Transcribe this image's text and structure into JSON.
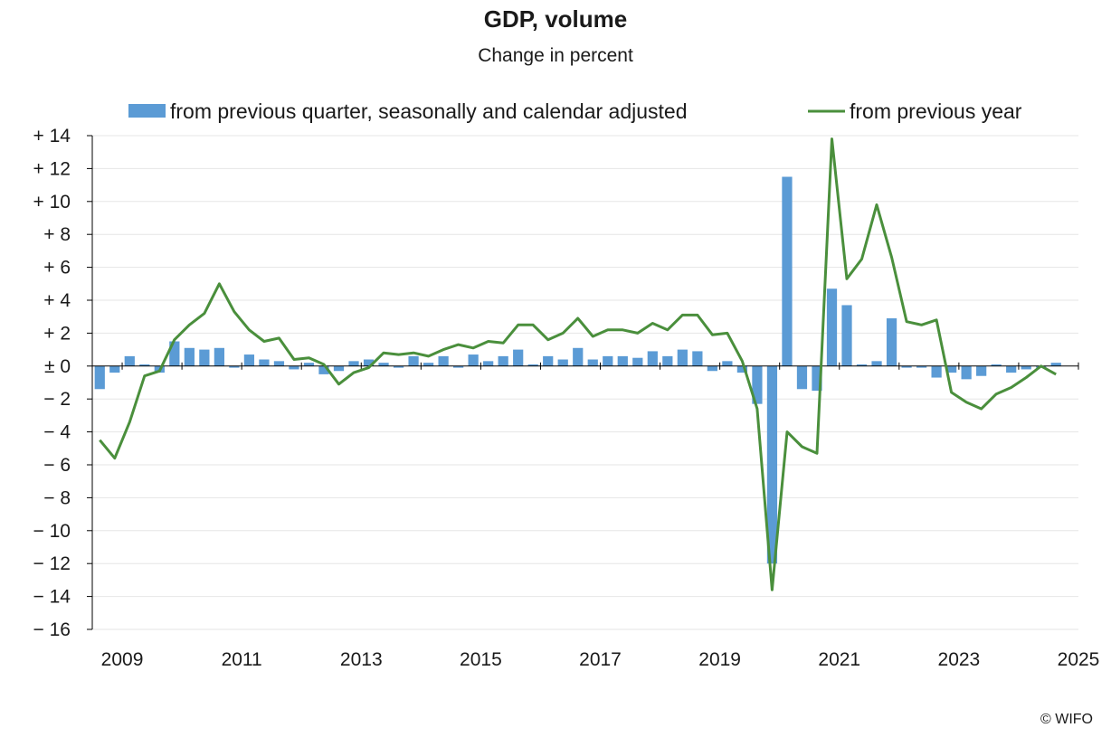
{
  "title": "GDP, volume",
  "subtitle": "Change in percent",
  "credit": "© WIFO",
  "colors": {
    "bars": "#5b9bd5",
    "line": "#4a8f3c",
    "grid": "#e6e6e6",
    "axis": "#000000"
  },
  "chart_data": {
    "type": "bar+line",
    "title": "GDP, volume",
    "subtitle": "Change in percent",
    "ylim": [
      -16,
      14
    ],
    "yticks": [
      14,
      12,
      10,
      8,
      6,
      4,
      2,
      0,
      -2,
      -4,
      -6,
      -8,
      -10,
      -12,
      -14,
      -16
    ],
    "ytick_labels": [
      "+ 14",
      "+ 12",
      "+ 10",
      "+ 8",
      "+ 6",
      "+ 4",
      "+ 2",
      "± 0",
      "− 2",
      "− 4",
      "− 6",
      "− 8",
      "− 10",
      "− 12",
      "− 14",
      "− 16"
    ],
    "xlim": [
      2008.5,
      2025.0
    ],
    "xtick_values": [
      2009,
      2011,
      2013,
      2015,
      2017,
      2019,
      2021,
      2023,
      2025
    ],
    "xtick_labels": [
      "2009",
      "2011",
      "2013",
      "2015",
      "2017",
      "2019",
      "2021",
      "2023",
      "2025"
    ],
    "grid": true,
    "legend_position": "top",
    "start_year": 2008,
    "start_quarter": 3,
    "series": [
      {
        "name": "from previous quarter, seasonally and calendar adjusted",
        "kind": "bar",
        "values": [
          -1.4,
          -0.4,
          0.6,
          0.1,
          -0.4,
          1.5,
          1.1,
          1.0,
          1.1,
          -0.1,
          0.7,
          0.4,
          0.3,
          -0.2,
          0.2,
          -0.5,
          -0.3,
          0.3,
          0.4,
          0.2,
          -0.1,
          0.6,
          0.2,
          0.6,
          -0.1,
          0.7,
          0.3,
          0.6,
          1.0,
          0.1,
          0.6,
          0.4,
          1.1,
          0.4,
          0.6,
          0.6,
          0.5,
          0.9,
          0.6,
          1.0,
          0.9,
          -0.3,
          0.3,
          -0.4,
          -2.3,
          -12.0,
          11.5,
          -1.4,
          -1.5,
          4.7,
          3.7,
          0.1,
          0.3,
          2.9,
          -0.1,
          -0.1,
          -0.7,
          -0.4,
          -0.8,
          -0.6,
          0.1,
          -0.4,
          -0.2,
          -0.1,
          0.2
        ]
      },
      {
        "name": "from previous year",
        "kind": "line",
        "values": [
          -4.5,
          -5.6,
          -3.4,
          -0.6,
          -0.3,
          1.6,
          2.5,
          3.2,
          5.0,
          3.3,
          2.2,
          1.5,
          1.7,
          0.4,
          0.5,
          0.1,
          -1.1,
          -0.4,
          -0.1,
          0.8,
          0.7,
          0.8,
          0.6,
          1.0,
          1.3,
          1.1,
          1.5,
          1.4,
          2.5,
          2.5,
          1.6,
          2.0,
          2.9,
          1.8,
          2.2,
          2.2,
          2.0,
          2.6,
          2.2,
          3.1,
          3.1,
          1.9,
          2.0,
          0.3,
          -2.6,
          -13.6,
          -4.0,
          -4.9,
          -5.3,
          13.8,
          5.3,
          6.5,
          9.8,
          6.6,
          2.7,
          2.5,
          2.8,
          -1.6,
          -2.2,
          -2.6,
          -1.7,
          -1.3,
          -0.7,
          0.0,
          -0.5
        ]
      }
    ]
  }
}
